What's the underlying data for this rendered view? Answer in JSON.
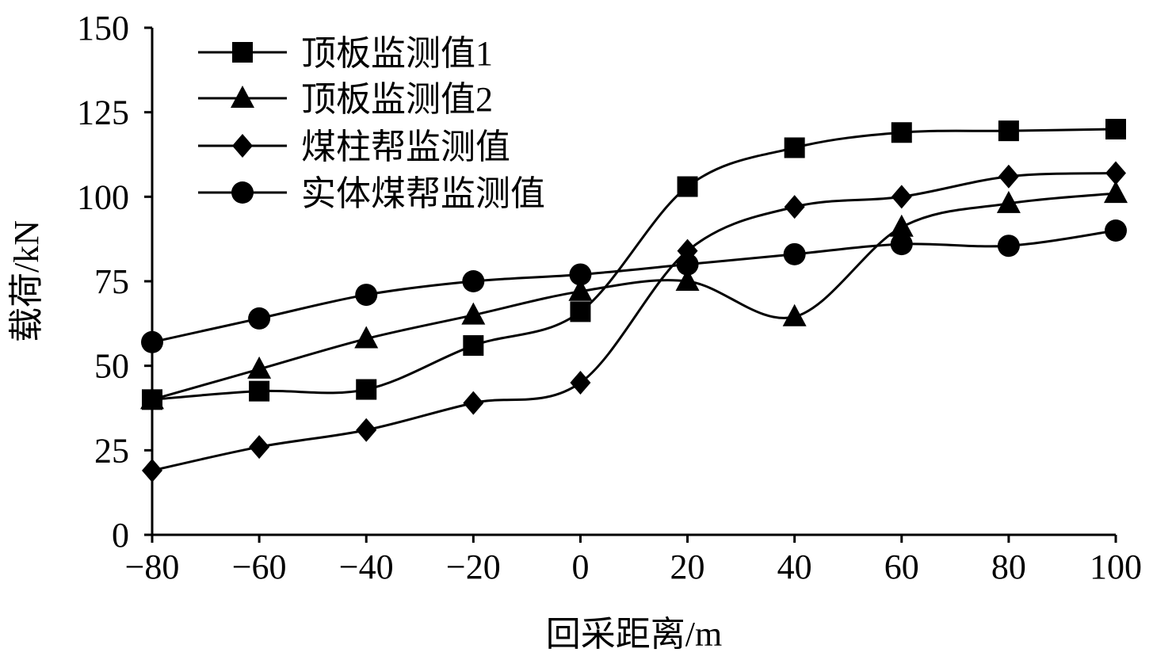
{
  "chart_data": {
    "type": "line",
    "title": "",
    "xlabel": "回采距离/m",
    "ylabel": "载荷/kN",
    "x": [
      -80,
      -60,
      -40,
      -20,
      0,
      20,
      40,
      60,
      80,
      100
    ],
    "xlim": [
      -80,
      100
    ],
    "ylim": [
      0,
      150
    ],
    "xticks": [
      "−80",
      "−60",
      "−40",
      "−20",
      "0",
      "20",
      "40",
      "60",
      "80",
      "100"
    ],
    "yticks": [
      "0",
      "25",
      "50",
      "75",
      "100",
      "125",
      "150"
    ],
    "grid": false,
    "legend_position": "top-left",
    "series": [
      {
        "name": "顶板监测值1",
        "marker": "square",
        "values": [
          40,
          42.5,
          43,
          56,
          66,
          103,
          114.5,
          119,
          119.5,
          120
        ]
      },
      {
        "name": "顶板监测值2",
        "marker": "triangle",
        "values": [
          40,
          49,
          58,
          65,
          72,
          75,
          64.5,
          91,
          98,
          101
        ]
      },
      {
        "name": "煤柱帮监测值",
        "marker": "diamond",
        "values": [
          19,
          26,
          31,
          39,
          45,
          84,
          97,
          100,
          106,
          107
        ]
      },
      {
        "name": "实体煤帮监测值",
        "marker": "circle",
        "values": [
          57,
          64,
          71,
          75,
          77,
          80,
          83,
          86,
          85.5,
          90
        ]
      }
    ]
  }
}
